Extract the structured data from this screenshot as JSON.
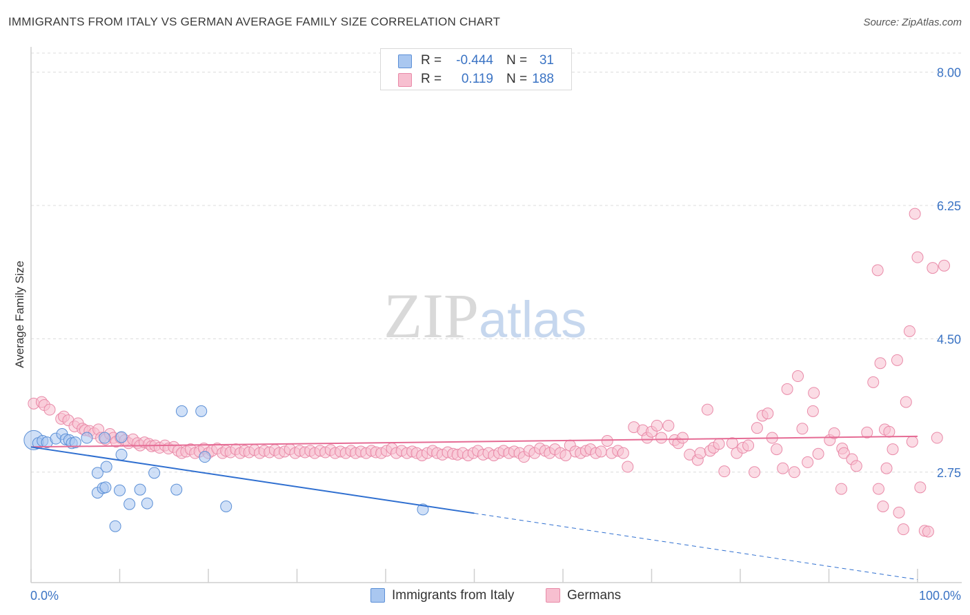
{
  "title": "IMMIGRANTS FROM ITALY VS GERMAN AVERAGE FAMILY SIZE CORRELATION CHART",
  "source": "Source: ZipAtlas.com",
  "watermark": {
    "zip": "ZIP",
    "atlas": "atlas"
  },
  "legend": {
    "rows": [
      {
        "r_label": "R =",
        "r_value": "-0.444",
        "n_label": "N =",
        "n_value": "31"
      },
      {
        "r_label": "R =",
        "r_value": "0.119",
        "n_label": "N =",
        "n_value": "188"
      }
    ]
  },
  "bottom_legend": {
    "italy": "Immigrants from Italy",
    "germans": "Germans"
  },
  "colors": {
    "italy_fill": "#a9c7f0",
    "italy_stroke": "#5b8fd6",
    "italy_line": "#2f6fd0",
    "germans_fill": "#f7bfd0",
    "germans_stroke": "#e98aa8",
    "germans_line": "#e56b94",
    "tick_label": "#3a73c4",
    "grid": "#dcdcdc"
  },
  "chart_data": {
    "type": "scatter",
    "title": "IMMIGRANTS FROM ITALY VS GERMAN AVERAGE FAMILY SIZE CORRELATION CHART",
    "xlabel": "",
    "ylabel": "Average Family Size",
    "xlim": [
      0,
      100
    ],
    "ylim": [
      1.3,
      8.25
    ],
    "x_tick_labels": [
      "0.0%",
      "100.0%"
    ],
    "y_ticks": [
      2.75,
      4.5,
      6.25,
      8.0
    ],
    "y_tick_labels": [
      "2.75",
      "4.50",
      "6.25",
      "8.00"
    ],
    "grid": true,
    "legend_position": "top-center",
    "series": [
      {
        "name": "Immigrants from Italy",
        "r": -0.444,
        "n": 31,
        "trend": {
          "x0": 0,
          "y0": 3.08,
          "x1": 50,
          "y1": 2.21,
          "dashed_to_x": 100
        },
        "points": [
          [
            0.3,
            3.17
          ],
          [
            0.8,
            3.13
          ],
          [
            1.3,
            3.16
          ],
          [
            1.8,
            3.14
          ],
          [
            2.8,
            3.19
          ],
          [
            3.5,
            3.25
          ],
          [
            3.9,
            3.18
          ],
          [
            4.3,
            3.17
          ],
          [
            4.6,
            3.13
          ],
          [
            5.0,
            3.14
          ],
          [
            6.3,
            3.2
          ],
          [
            8.3,
            3.2
          ],
          [
            10.2,
            3.21
          ],
          [
            17.0,
            3.55
          ],
          [
            19.2,
            3.55
          ],
          [
            10.2,
            2.98
          ],
          [
            19.6,
            2.95
          ],
          [
            7.5,
            2.74
          ],
          [
            8.5,
            2.82
          ],
          [
            13.9,
            2.74
          ],
          [
            7.5,
            2.48
          ],
          [
            8.1,
            2.54
          ],
          [
            8.4,
            2.55
          ],
          [
            10.0,
            2.51
          ],
          [
            12.3,
            2.52
          ],
          [
            16.4,
            2.52
          ],
          [
            11.1,
            2.33
          ],
          [
            13.1,
            2.34
          ],
          [
            22.0,
            2.3
          ],
          [
            9.5,
            2.04
          ],
          [
            44.2,
            2.26
          ]
        ]
      },
      {
        "name": "Germans",
        "r": 0.119,
        "n": 188,
        "trend": {
          "x0": 0,
          "y0": 3.08,
          "x1": 100,
          "y1": 3.22
        },
        "points": [
          [
            0.3,
            3.65
          ],
          [
            1.2,
            3.67
          ],
          [
            1.5,
            3.63
          ],
          [
            2.1,
            3.57
          ],
          [
            3.4,
            3.45
          ],
          [
            3.7,
            3.48
          ],
          [
            4.2,
            3.43
          ],
          [
            4.9,
            3.35
          ],
          [
            5.3,
            3.39
          ],
          [
            5.8,
            3.32
          ],
          [
            6.1,
            3.3
          ],
          [
            6.6,
            3.29
          ],
          [
            7.1,
            3.26
          ],
          [
            7.6,
            3.31
          ],
          [
            7.9,
            3.2
          ],
          [
            8.4,
            3.18
          ],
          [
            8.9,
            3.25
          ],
          [
            9.3,
            3.2
          ],
          [
            9.6,
            3.15
          ],
          [
            10.1,
            3.2
          ],
          [
            10.6,
            3.17
          ],
          [
            11.0,
            3.13
          ],
          [
            11.5,
            3.18
          ],
          [
            12.0,
            3.13
          ],
          [
            12.3,
            3.1
          ],
          [
            12.8,
            3.14
          ],
          [
            13.3,
            3.12
          ],
          [
            13.6,
            3.09
          ],
          [
            14.0,
            3.1
          ],
          [
            14.5,
            3.07
          ],
          [
            15.1,
            3.1
          ],
          [
            15.5,
            3.06
          ],
          [
            16.1,
            3.08
          ],
          [
            16.6,
            3.03
          ],
          [
            17.0,
            3.0
          ],
          [
            17.5,
            3.02
          ],
          [
            18.0,
            3.05
          ],
          [
            18.5,
            3.0
          ],
          [
            19.0,
            3.02
          ],
          [
            19.5,
            3.06
          ],
          [
            20.0,
            3.0
          ],
          [
            20.4,
            3.03
          ],
          [
            21.0,
            3.06
          ],
          [
            21.6,
            3.0
          ],
          [
            22.0,
            3.03
          ],
          [
            22.5,
            3.01
          ],
          [
            23.1,
            3.05
          ],
          [
            23.6,
            3.0
          ],
          [
            24.1,
            3.03
          ],
          [
            24.6,
            3.01
          ],
          [
            25.2,
            3.04
          ],
          [
            25.8,
            3.0
          ],
          [
            26.3,
            3.03
          ],
          [
            26.9,
            3.01
          ],
          [
            27.5,
            3.04
          ],
          [
            28.0,
            3.0
          ],
          [
            28.6,
            3.02
          ],
          [
            29.2,
            3.05
          ],
          [
            29.8,
            3.0
          ],
          [
            30.3,
            3.03
          ],
          [
            30.9,
            3.01
          ],
          [
            31.5,
            3.03
          ],
          [
            32.0,
            3.0
          ],
          [
            32.6,
            3.03
          ],
          [
            33.2,
            3.01
          ],
          [
            33.8,
            3.04
          ],
          [
            34.3,
            3.0
          ],
          [
            34.9,
            3.02
          ],
          [
            35.5,
            3.0
          ],
          [
            36.1,
            3.03
          ],
          [
            36.6,
            3.0
          ],
          [
            37.2,
            3.02
          ],
          [
            37.8,
            3.0
          ],
          [
            38.4,
            3.03
          ],
          [
            38.9,
            3.01
          ],
          [
            39.5,
            3.0
          ],
          [
            40.1,
            3.03
          ],
          [
            40.7,
            3.06
          ],
          [
            41.2,
            3.0
          ],
          [
            41.8,
            3.03
          ],
          [
            42.4,
            3.0
          ],
          [
            43.0,
            3.02
          ],
          [
            43.5,
            3.0
          ],
          [
            44.1,
            2.97
          ],
          [
            44.7,
            3.0
          ],
          [
            45.3,
            3.03
          ],
          [
            45.8,
            3.0
          ],
          [
            46.4,
            2.98
          ],
          [
            47.0,
            3.01
          ],
          [
            47.6,
            2.99
          ],
          [
            48.1,
            2.98
          ],
          [
            48.7,
            3.0
          ],
          [
            49.3,
            2.97
          ],
          [
            49.9,
            3.0
          ],
          [
            50.4,
            3.03
          ],
          [
            51.0,
            2.98
          ],
          [
            51.6,
            3.0
          ],
          [
            52.2,
            2.97
          ],
          [
            52.8,
            3.0
          ],
          [
            53.3,
            3.03
          ],
          [
            53.9,
            3.0
          ],
          [
            54.5,
            3.02
          ],
          [
            55.1,
            3.0
          ],
          [
            55.6,
            2.95
          ],
          [
            56.2,
            3.03
          ],
          [
            56.8,
            3.0
          ],
          [
            57.4,
            3.06
          ],
          [
            58.0,
            3.03
          ],
          [
            58.5,
            3.0
          ],
          [
            59.1,
            3.05
          ],
          [
            59.7,
            3.0
          ],
          [
            60.3,
            2.97
          ],
          [
            60.8,
            3.1
          ],
          [
            61.4,
            3.02
          ],
          [
            62.0,
            3.0
          ],
          [
            62.6,
            3.03
          ],
          [
            63.1,
            3.05
          ],
          [
            63.7,
            3.0
          ],
          [
            64.3,
            3.02
          ],
          [
            65.0,
            3.16
          ],
          [
            65.5,
            3.0
          ],
          [
            66.2,
            3.03
          ],
          [
            66.8,
            3.0
          ],
          [
            67.3,
            2.82
          ],
          [
            68.0,
            3.34
          ],
          [
            69.0,
            3.3
          ],
          [
            69.5,
            3.2
          ],
          [
            70.0,
            3.28
          ],
          [
            70.6,
            3.36
          ],
          [
            71.1,
            3.2
          ],
          [
            71.9,
            3.36
          ],
          [
            72.6,
            3.17
          ],
          [
            73.0,
            3.13
          ],
          [
            73.5,
            3.2
          ],
          [
            74.3,
            2.98
          ],
          [
            75.2,
            2.91
          ],
          [
            75.5,
            3.0
          ],
          [
            76.3,
            3.57
          ],
          [
            76.6,
            3.03
          ],
          [
            77.0,
            3.07
          ],
          [
            77.6,
            3.12
          ],
          [
            78.2,
            2.76
          ],
          [
            79.1,
            3.13
          ],
          [
            79.6,
            3.0
          ],
          [
            80.3,
            3.07
          ],
          [
            80.9,
            3.1
          ],
          [
            81.6,
            2.75
          ],
          [
            81.9,
            3.33
          ],
          [
            82.5,
            3.49
          ],
          [
            83.1,
            3.52
          ],
          [
            83.6,
            3.2
          ],
          [
            84.1,
            3.05
          ],
          [
            84.8,
            2.8
          ],
          [
            85.3,
            3.84
          ],
          [
            86.1,
            2.75
          ],
          [
            86.5,
            4.01
          ],
          [
            87.0,
            3.32
          ],
          [
            87.6,
            2.88
          ],
          [
            88.2,
            3.55
          ],
          [
            88.3,
            3.79
          ],
          [
            88.8,
            2.99
          ],
          [
            90.1,
            3.17
          ],
          [
            90.6,
            3.26
          ],
          [
            91.4,
            2.53
          ],
          [
            91.5,
            3.06
          ],
          [
            91.7,
            3.0
          ],
          [
            92.6,
            2.92
          ],
          [
            93.1,
            2.83
          ],
          [
            94.3,
            3.27
          ],
          [
            95.0,
            3.93
          ],
          [
            95.5,
            5.4
          ],
          [
            95.6,
            2.53
          ],
          [
            95.8,
            4.18
          ],
          [
            96.3,
            3.31
          ],
          [
            96.1,
            2.3
          ],
          [
            96.5,
            2.8
          ],
          [
            96.8,
            3.28
          ],
          [
            97.2,
            3.05
          ],
          [
            97.7,
            4.22
          ],
          [
            97.9,
            2.22
          ],
          [
            98.4,
            2.0
          ],
          [
            98.7,
            3.67
          ],
          [
            99.1,
            4.6
          ],
          [
            99.4,
            3.15
          ],
          [
            99.7,
            6.14
          ],
          [
            100.0,
            5.57
          ],
          [
            100.3,
            2.55
          ],
          [
            100.8,
            1.98
          ],
          [
            101.2,
            1.97
          ],
          [
            101.7,
            5.43
          ],
          [
            102.2,
            3.2
          ],
          [
            103.0,
            5.46
          ]
        ]
      }
    ]
  }
}
